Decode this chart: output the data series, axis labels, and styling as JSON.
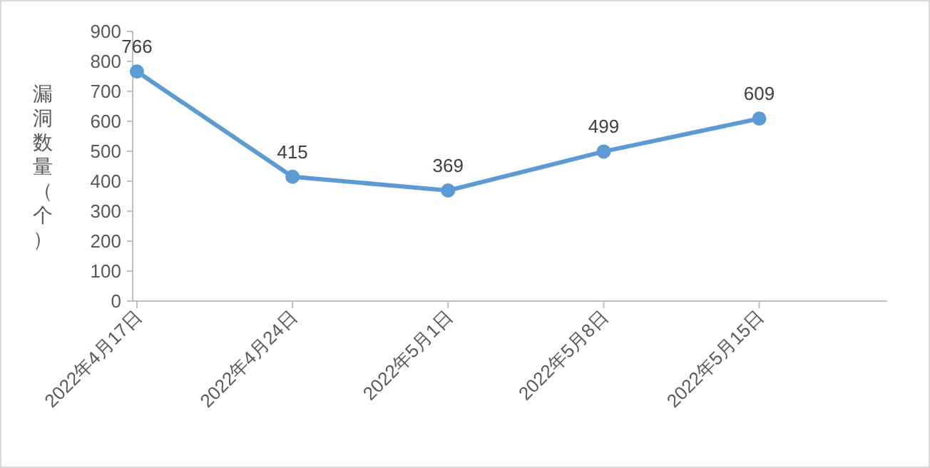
{
  "chart_data": {
    "type": "line",
    "ylabel": "漏洞数量（个）",
    "categories": [
      "2022年4月17日",
      "2022年4月24日",
      "2022年5月1日",
      "2022年5月8日",
      "2022年5月15日"
    ],
    "series": [
      {
        "color": "#5b9bd5",
        "values": [
          766,
          415,
          369,
          499,
          609
        ]
      }
    ],
    "ylim": [
      0,
      900
    ],
    "yticks": [
      0,
      100,
      200,
      300,
      400,
      500,
      600,
      700,
      800,
      900
    ],
    "data_labels": true,
    "marker": "circle",
    "line_style": "solid"
  }
}
